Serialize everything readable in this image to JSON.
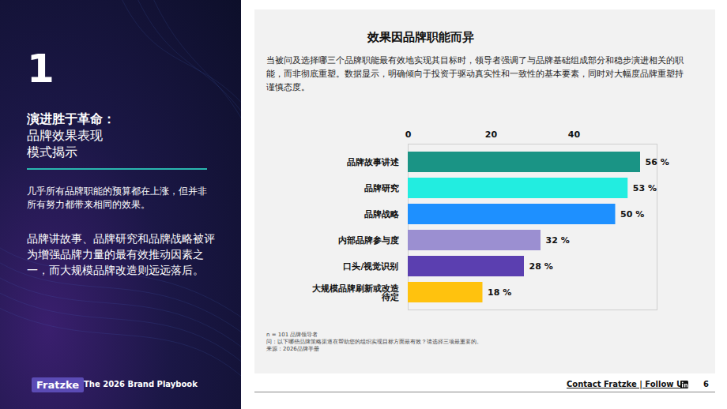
{
  "page": {
    "section_number": "1",
    "headline": "演进胜于革命：",
    "headline_sub": [
      "品牌效果表现",
      "模式揭示"
    ],
    "intro": "几乎所有品牌职能的预算都在上涨，但并非所有努力都带来相同的效果。",
    "summary": "品牌讲故事、品牌研究和品牌战略被评为增强品牌力量的最有效推动因素之一，而大规模品牌改造则远远落后。",
    "brand": "Fratzke",
    "publication": "The 2026 Brand Playbook",
    "footer_links": "Contact Fratzke | Follow Us",
    "page_number": "6"
  },
  "chart_data": {
    "type": "bar",
    "orientation": "horizontal",
    "title": "效果因品牌职能而异",
    "subtitle": "当被问及选择哪三个品牌职能最有效地实现其目标时，领导者强调了与品牌基础组成部分和稳步演进相关的职能，而非彻底重塑。数据显示，明确倾向于投资于驱动真实性和一致性的基本要素，同时对大幅度品牌重塑持谨慎态度。",
    "categories": [
      "品牌故事讲述",
      "品牌研究",
      "品牌战略",
      "内部品牌参与度",
      "口头/视觉识别",
      "大规模品牌刷新或改造\n待定"
    ],
    "values": [
      56,
      53,
      50,
      32,
      28,
      18
    ],
    "value_labels": [
      "56 %",
      "53 %",
      "50 %",
      "32 %",
      "28 %",
      "18 %"
    ],
    "colors": [
      "#1a9485",
      "#22ede0",
      "#1e90ff",
      "#9b8fd1",
      "#5b3fb0",
      "#ffc20e"
    ],
    "xlim": [
      0,
      60
    ],
    "xticks": [
      0,
      20,
      40
    ],
    "grid": false,
    "data_labels": true,
    "annotations": [
      "n = 101 品牌领导者",
      "问：以下哪些品牌策略渠道在帮助您的组织实现目标方面最有效？请选择三项最重要的。",
      "来源：2026品牌手册"
    ]
  }
}
